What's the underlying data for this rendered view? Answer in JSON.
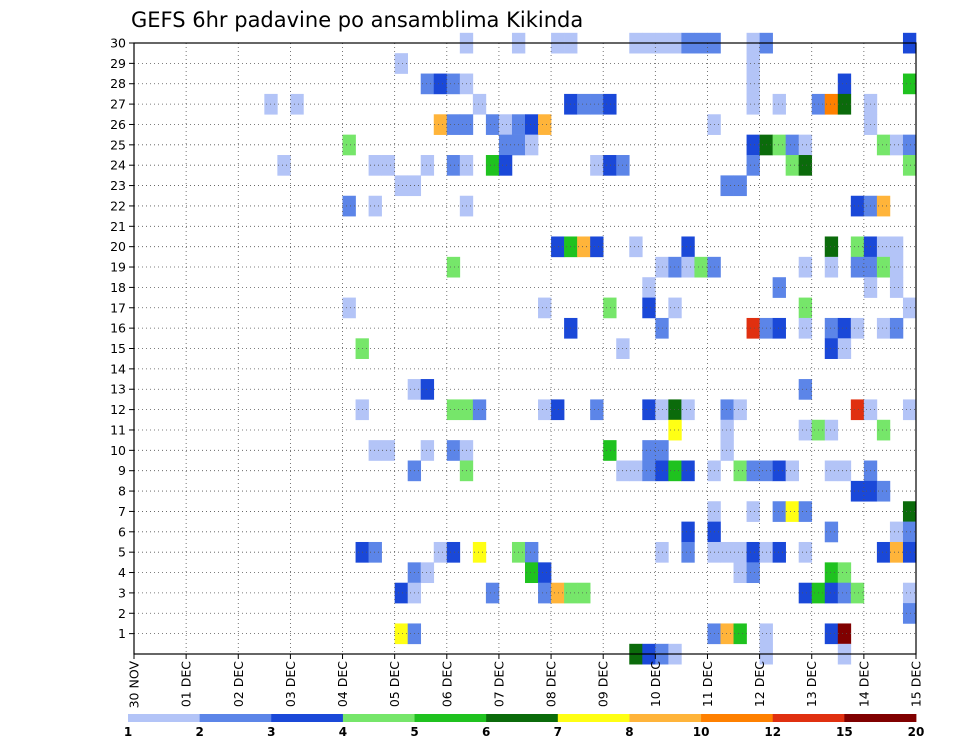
{
  "chart_data": {
    "type": "heatmap",
    "title": "GEFS 6hr padavine po ansamblima Kikinda",
    "xlabel": "",
    "ylabel": "",
    "x_ticks": [
      "30 NOV",
      "01 DEC",
      "02 DEC",
      "03 DEC",
      "04 DEC",
      "05 DEC",
      "06 DEC",
      "07 DEC",
      "08 DEC",
      "09 DEC",
      "10 DEC",
      "11 DEC",
      "12 DEC",
      "13 DEC",
      "14 DEC",
      "15 DEC"
    ],
    "x_range_days": [
      0,
      15
    ],
    "steps_per_day": 4,
    "y_ticks": [
      1,
      2,
      3,
      4,
      5,
      6,
      7,
      8,
      9,
      10,
      11,
      12,
      13,
      14,
      15,
      16,
      17,
      18,
      19,
      20,
      21,
      22,
      23,
      24,
      25,
      26,
      27,
      28,
      29,
      30
    ],
    "y_range": [
      0,
      30
    ],
    "grid": true,
    "legend_placement": "bottom",
    "legend_labels": [
      "1",
      "2",
      "3",
      "4",
      "5",
      "6",
      "7",
      "8",
      "10",
      "12",
      "15",
      "20"
    ],
    "legend_colors": [
      "#b3c4f7",
      "#5c85e8",
      "#1a48d8",
      "#76e66a",
      "#1fc21f",
      "#0b6b0b",
      "#ffff14",
      "#ffb43a",
      "#ff8000",
      "#e03010",
      "#800000"
    ],
    "category_scale": [
      1,
      2,
      3,
      4,
      5,
      6,
      7,
      8,
      10,
      12,
      15,
      20
    ],
    "cells": [
      {
        "m": 30,
        "s": [
          [
            25,
            1
          ],
          [
            29,
            1
          ],
          [
            32,
            1
          ],
          [
            33,
            1
          ],
          [
            38,
            1
          ],
          [
            39,
            1
          ],
          [
            40,
            1
          ],
          [
            41,
            1
          ],
          [
            42,
            2
          ],
          [
            43,
            2
          ],
          [
            44,
            2
          ],
          [
            47,
            1
          ],
          [
            48,
            2
          ],
          [
            59,
            3
          ]
        ]
      },
      {
        "m": 29,
        "s": [
          [
            20,
            1
          ],
          [
            47,
            1
          ]
        ]
      },
      {
        "m": 28,
        "s": [
          [
            22,
            2
          ],
          [
            23,
            3
          ],
          [
            24,
            2
          ],
          [
            25,
            1
          ],
          [
            47,
            1
          ],
          [
            54,
            3
          ],
          [
            59,
            5
          ]
        ]
      },
      {
        "m": 27,
        "s": [
          [
            10,
            1
          ],
          [
            12,
            1
          ],
          [
            26,
            1
          ],
          [
            33,
            3
          ],
          [
            34,
            2
          ],
          [
            35,
            2
          ],
          [
            36,
            3
          ],
          [
            47,
            1
          ],
          [
            49,
            1
          ],
          [
            52,
            2
          ],
          [
            53,
            9
          ],
          [
            54,
            6
          ],
          [
            56,
            1
          ]
        ]
      },
      {
        "m": 26,
        "s": [
          [
            23,
            8
          ],
          [
            24,
            2
          ],
          [
            25,
            2
          ],
          [
            27,
            2
          ],
          [
            28,
            1
          ],
          [
            29,
            2
          ],
          [
            30,
            3
          ],
          [
            31,
            8
          ],
          [
            44,
            1
          ],
          [
            56,
            1
          ]
        ]
      },
      {
        "m": 25,
        "s": [
          [
            16,
            4
          ],
          [
            28,
            2
          ],
          [
            29,
            2
          ],
          [
            30,
            1
          ],
          [
            47,
            3
          ],
          [
            48,
            6
          ],
          [
            49,
            4
          ],
          [
            50,
            2
          ],
          [
            51,
            1
          ],
          [
            57,
            4
          ],
          [
            58,
            1
          ],
          [
            59,
            2
          ]
        ]
      },
      {
        "m": 24,
        "s": [
          [
            11,
            1
          ],
          [
            18,
            1
          ],
          [
            19,
            1
          ],
          [
            22,
            1
          ],
          [
            24,
            2
          ],
          [
            25,
            1
          ],
          [
            27,
            5
          ],
          [
            28,
            3
          ],
          [
            35,
            1
          ],
          [
            36,
            3
          ],
          [
            37,
            2
          ],
          [
            47,
            2
          ],
          [
            50,
            4
          ],
          [
            51,
            6
          ],
          [
            59,
            4
          ]
        ]
      },
      {
        "m": 23,
        "s": [
          [
            20,
            1
          ],
          [
            21,
            1
          ],
          [
            45,
            2
          ],
          [
            46,
            2
          ]
        ]
      },
      {
        "m": 22,
        "s": [
          [
            16,
            2
          ],
          [
            18,
            1
          ],
          [
            25,
            1
          ],
          [
            55,
            3
          ],
          [
            56,
            2
          ],
          [
            57,
            8
          ]
        ]
      },
      {
        "m": 20,
        "s": [
          [
            32,
            3
          ],
          [
            33,
            5
          ],
          [
            34,
            8
          ],
          [
            35,
            3
          ],
          [
            38,
            1
          ],
          [
            42,
            3
          ],
          [
            53,
            6
          ],
          [
            55,
            4
          ],
          [
            56,
            3
          ],
          [
            57,
            1
          ],
          [
            58,
            1
          ]
        ]
      },
      {
        "m": 19,
        "s": [
          [
            24,
            4
          ],
          [
            40,
            1
          ],
          [
            41,
            2
          ],
          [
            42,
            1
          ],
          [
            43,
            4
          ],
          [
            44,
            2
          ],
          [
            51,
            1
          ],
          [
            53,
            1
          ],
          [
            55,
            2
          ],
          [
            56,
            2
          ],
          [
            57,
            4
          ],
          [
            58,
            1
          ]
        ]
      },
      {
        "m": 18,
        "s": [
          [
            39,
            1
          ],
          [
            49,
            2
          ],
          [
            56,
            1
          ],
          [
            58,
            1
          ]
        ]
      },
      {
        "m": 17,
        "s": [
          [
            16,
            1
          ],
          [
            31,
            1
          ],
          [
            36,
            4
          ],
          [
            39,
            3
          ],
          [
            41,
            1
          ],
          [
            51,
            4
          ],
          [
            59,
            1
          ]
        ]
      },
      {
        "m": 16,
        "s": [
          [
            33,
            3
          ],
          [
            40,
            2
          ],
          [
            47,
            10
          ],
          [
            48,
            2
          ],
          [
            49,
            3
          ],
          [
            51,
            1
          ],
          [
            53,
            2
          ],
          [
            54,
            3
          ],
          [
            55,
            1
          ],
          [
            57,
            1
          ],
          [
            58,
            2
          ]
        ]
      },
      {
        "m": 15,
        "s": [
          [
            17,
            4
          ],
          [
            37,
            1
          ],
          [
            53,
            3
          ],
          [
            54,
            1
          ]
        ]
      },
      {
        "m": 13,
        "s": [
          [
            21,
            1
          ],
          [
            22,
            3
          ],
          [
            51,
            2
          ]
        ]
      },
      {
        "m": 12,
        "s": [
          [
            17,
            1
          ],
          [
            24,
            4
          ],
          [
            25,
            4
          ],
          [
            26,
            2
          ],
          [
            31,
            1
          ],
          [
            32,
            3
          ],
          [
            35,
            2
          ],
          [
            39,
            3
          ],
          [
            40,
            1
          ],
          [
            41,
            6
          ],
          [
            42,
            1
          ],
          [
            45,
            2
          ],
          [
            46,
            1
          ],
          [
            55,
            10
          ],
          [
            56,
            1
          ],
          [
            59,
            1
          ]
        ]
      },
      {
        "m": 11,
        "s": [
          [
            41,
            7
          ],
          [
            45,
            1
          ],
          [
            51,
            1
          ],
          [
            52,
            4
          ],
          [
            53,
            1
          ],
          [
            57,
            4
          ]
        ]
      },
      {
        "m": 10,
        "s": [
          [
            18,
            1
          ],
          [
            19,
            1
          ],
          [
            22,
            1
          ],
          [
            24,
            2
          ],
          [
            25,
            1
          ],
          [
            36,
            5
          ],
          [
            39,
            2
          ],
          [
            40,
            2
          ],
          [
            45,
            1
          ]
        ]
      },
      {
        "m": 9,
        "s": [
          [
            21,
            2
          ],
          [
            25,
            4
          ],
          [
            37,
            1
          ],
          [
            38,
            1
          ],
          [
            39,
            2
          ],
          [
            40,
            3
          ],
          [
            41,
            5
          ],
          [
            42,
            3
          ],
          [
            44,
            1
          ],
          [
            46,
            4
          ],
          [
            47,
            2
          ],
          [
            48,
            2
          ],
          [
            49,
            3
          ],
          [
            50,
            1
          ],
          [
            53,
            1
          ],
          [
            54,
            1
          ],
          [
            56,
            2
          ]
        ]
      },
      {
        "m": 8,
        "s": [
          [
            55,
            3
          ],
          [
            56,
            3
          ],
          [
            57,
            2
          ]
        ]
      },
      {
        "m": 7,
        "s": [
          [
            44,
            1
          ],
          [
            47,
            1
          ],
          [
            49,
            2
          ],
          [
            50,
            7
          ],
          [
            51,
            2
          ],
          [
            59,
            6
          ]
        ]
      },
      {
        "m": 6,
        "s": [
          [
            42,
            3
          ],
          [
            44,
            3
          ],
          [
            53,
            2
          ],
          [
            58,
            1
          ],
          [
            59,
            2
          ]
        ]
      },
      {
        "m": 5,
        "s": [
          [
            17,
            3
          ],
          [
            18,
            2
          ],
          [
            23,
            1
          ],
          [
            24,
            3
          ],
          [
            26,
            7
          ],
          [
            29,
            4
          ],
          [
            30,
            2
          ],
          [
            40,
            1
          ],
          [
            42,
            2
          ],
          [
            44,
            1
          ],
          [
            45,
            1
          ],
          [
            46,
            1
          ],
          [
            47,
            3
          ],
          [
            48,
            1
          ],
          [
            49,
            3
          ],
          [
            51,
            1
          ],
          [
            57,
            3
          ],
          [
            58,
            8
          ],
          [
            59,
            3
          ]
        ]
      },
      {
        "m": 4,
        "s": [
          [
            21,
            2
          ],
          [
            22,
            1
          ],
          [
            30,
            5
          ],
          [
            31,
            3
          ],
          [
            46,
            1
          ],
          [
            47,
            2
          ],
          [
            53,
            5
          ],
          [
            54,
            4
          ]
        ]
      },
      {
        "m": 3,
        "s": [
          [
            20,
            3
          ],
          [
            21,
            1
          ],
          [
            27,
            2
          ],
          [
            31,
            2
          ],
          [
            32,
            8
          ],
          [
            33,
            4
          ],
          [
            34,
            4
          ],
          [
            51,
            3
          ],
          [
            52,
            5
          ],
          [
            53,
            3
          ],
          [
            54,
            2
          ],
          [
            55,
            4
          ],
          [
            59,
            1
          ]
        ]
      },
      {
        "m": 2,
        "s": [
          [
            59,
            2
          ]
        ]
      },
      {
        "m": 1,
        "s": [
          [
            20,
            7
          ],
          [
            21,
            2
          ],
          [
            44,
            2
          ],
          [
            45,
            8
          ],
          [
            46,
            5
          ],
          [
            48,
            1
          ],
          [
            53,
            3
          ],
          [
            54,
            11
          ]
        ]
      },
      {
        "m": 0,
        "s": [
          [
            38,
            6
          ],
          [
            39,
            3
          ],
          [
            40,
            2
          ],
          [
            41,
            1
          ],
          [
            48,
            1
          ],
          [
            54,
            1
          ]
        ]
      }
    ]
  }
}
